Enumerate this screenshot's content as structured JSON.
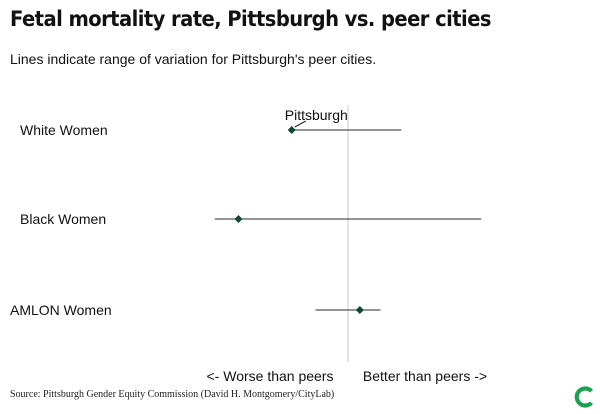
{
  "chart_data": {
    "type": "dot-range",
    "title": "Fetal mortality rate, Pittsburgh vs. peer cities",
    "subtitle": "Lines indicate range of variation for Pittsburgh's peer cities.",
    "rows": [
      {
        "label": "White Women",
        "pittsburgh": -0.19,
        "range": [
          -0.19,
          0.18
        ]
      },
      {
        "label": "Black Women",
        "pittsburgh": -0.37,
        "range": [
          -0.45,
          0.45
        ]
      },
      {
        "label": "AMLON Women",
        "pittsburgh": 0.04,
        "range": [
          -0.11,
          0.11
        ]
      }
    ],
    "xlim": [
      -0.5,
      0.5
    ],
    "reference_line": 0,
    "point_label": "Pittsburgh",
    "axis_annotations": {
      "left": "<- Worse than peers",
      "right": "Better than peers ->"
    },
    "source": "Source: Pittsburgh Gender Equity Commission (David H. Montgomery/CityLab)",
    "colors": {
      "marker": "#0d4a34",
      "line": "#555555",
      "reference": "#c8c8c8",
      "logo": "#1aa24f"
    }
  }
}
